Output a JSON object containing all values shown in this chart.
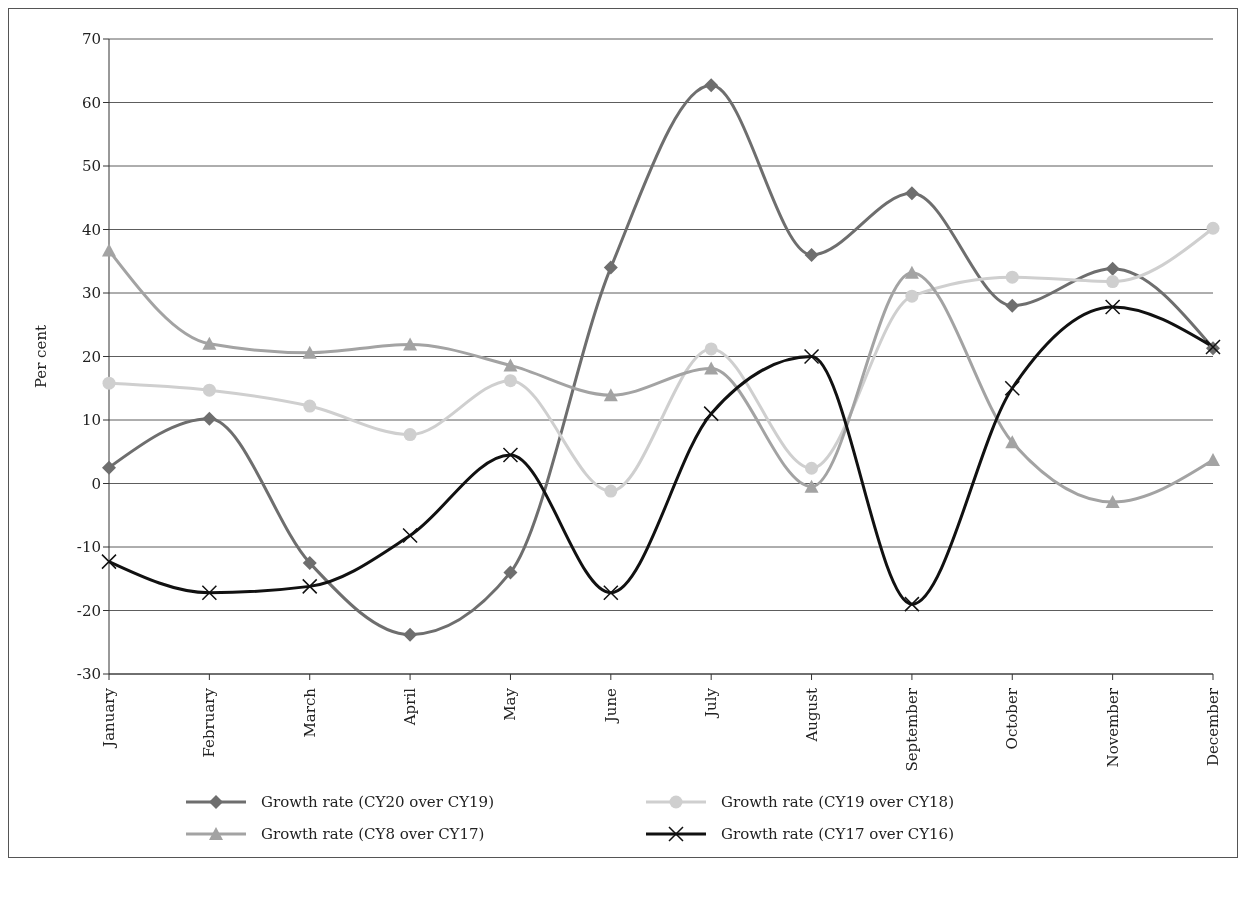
{
  "chart_data": {
    "type": "line",
    "ylabel": "Per cent",
    "categories": [
      "January",
      "February",
      "March",
      "April",
      "May",
      "June",
      "July",
      "August",
      "September",
      "October",
      "November",
      "December"
    ],
    "series": [
      {
        "name": "Growth rate (CY20 over CY19)",
        "color": "#6e6e6e",
        "marker": "diamond",
        "values": [
          2.5,
          10.2,
          -12.5,
          -23.8,
          -14,
          34,
          62.7,
          36,
          45.7,
          28,
          33.8,
          21.3
        ]
      },
      {
        "name": "Growth rate (CY19 over CY18)",
        "color": "#cfcfcf",
        "marker": "circle",
        "values": [
          15.8,
          14.7,
          12.2,
          7.7,
          16.2,
          -1.2,
          21.2,
          2.4,
          29.5,
          32.5,
          31.8,
          40.2
        ]
      },
      {
        "name": "Growth rate (CY8 over CY17)",
        "color": "#a3a3a3",
        "marker": "triangle",
        "values": [
          36.7,
          22,
          20.6,
          21.9,
          18.6,
          13.9,
          18.1,
          -0.5,
          33.2,
          6.5,
          -2.9,
          3.7
        ]
      },
      {
        "name": "Growth rate (CY17 over CY16)",
        "color": "#111111",
        "marker": "cross",
        "values": [
          -12.3,
          -17.2,
          -16.2,
          -8.2,
          4.5,
          -17.2,
          11,
          20,
          -19,
          15,
          27.8,
          21.5
        ]
      }
    ],
    "ylim": [
      -30,
      70
    ],
    "yticks": [
      -30,
      -20,
      -10,
      0,
      10,
      20,
      30,
      40,
      50,
      60,
      70
    ],
    "grid": "y",
    "legend": "bottom",
    "line_style": "solid"
  }
}
